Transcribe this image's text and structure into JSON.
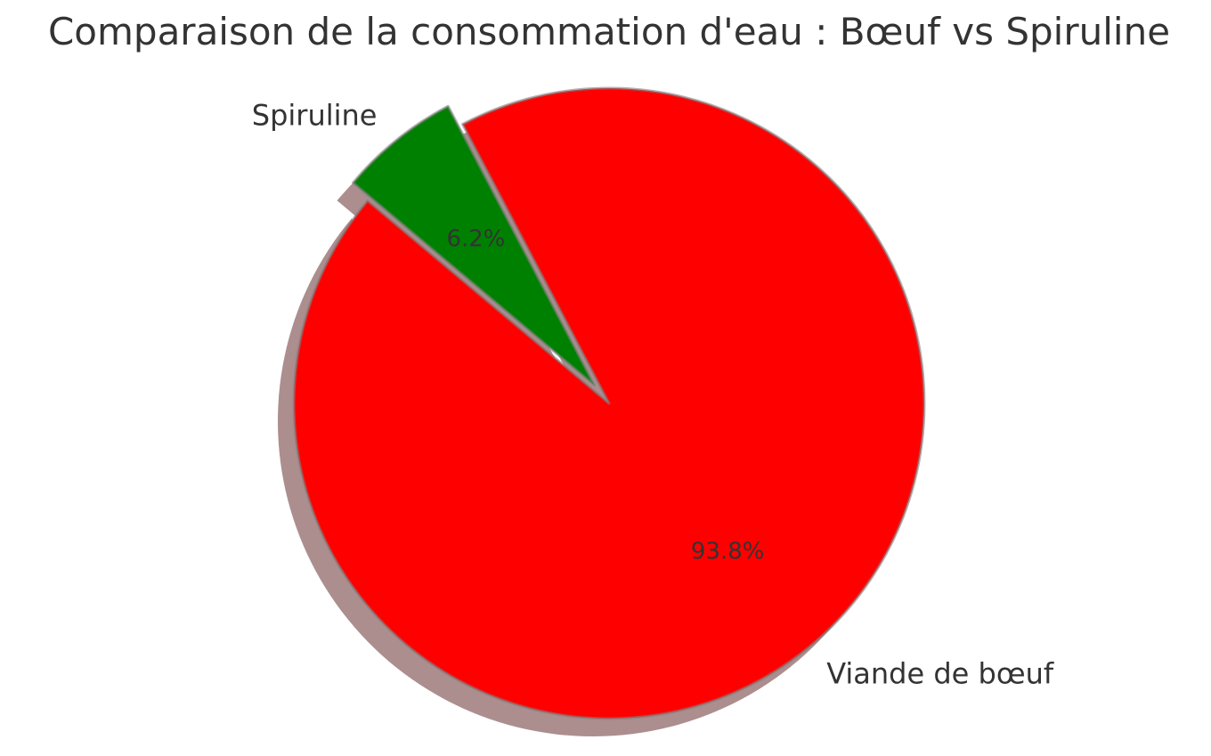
{
  "chart_data": {
    "type": "pie",
    "title": "Comparaison de la consommation d'eau : Bœuf vs Spiruline",
    "start_angle_deg": 140,
    "direction": "counterclockwise",
    "shadow": true,
    "slices": [
      {
        "label": "Viande de bœuf",
        "value": 93.8,
        "pct_label": "93.8%",
        "color": "#ff0000",
        "exploded": false
      },
      {
        "label": "Spiruline",
        "value": 6.2,
        "pct_label": "6.2%",
        "color": "#008000",
        "exploded": true
      }
    ]
  }
}
